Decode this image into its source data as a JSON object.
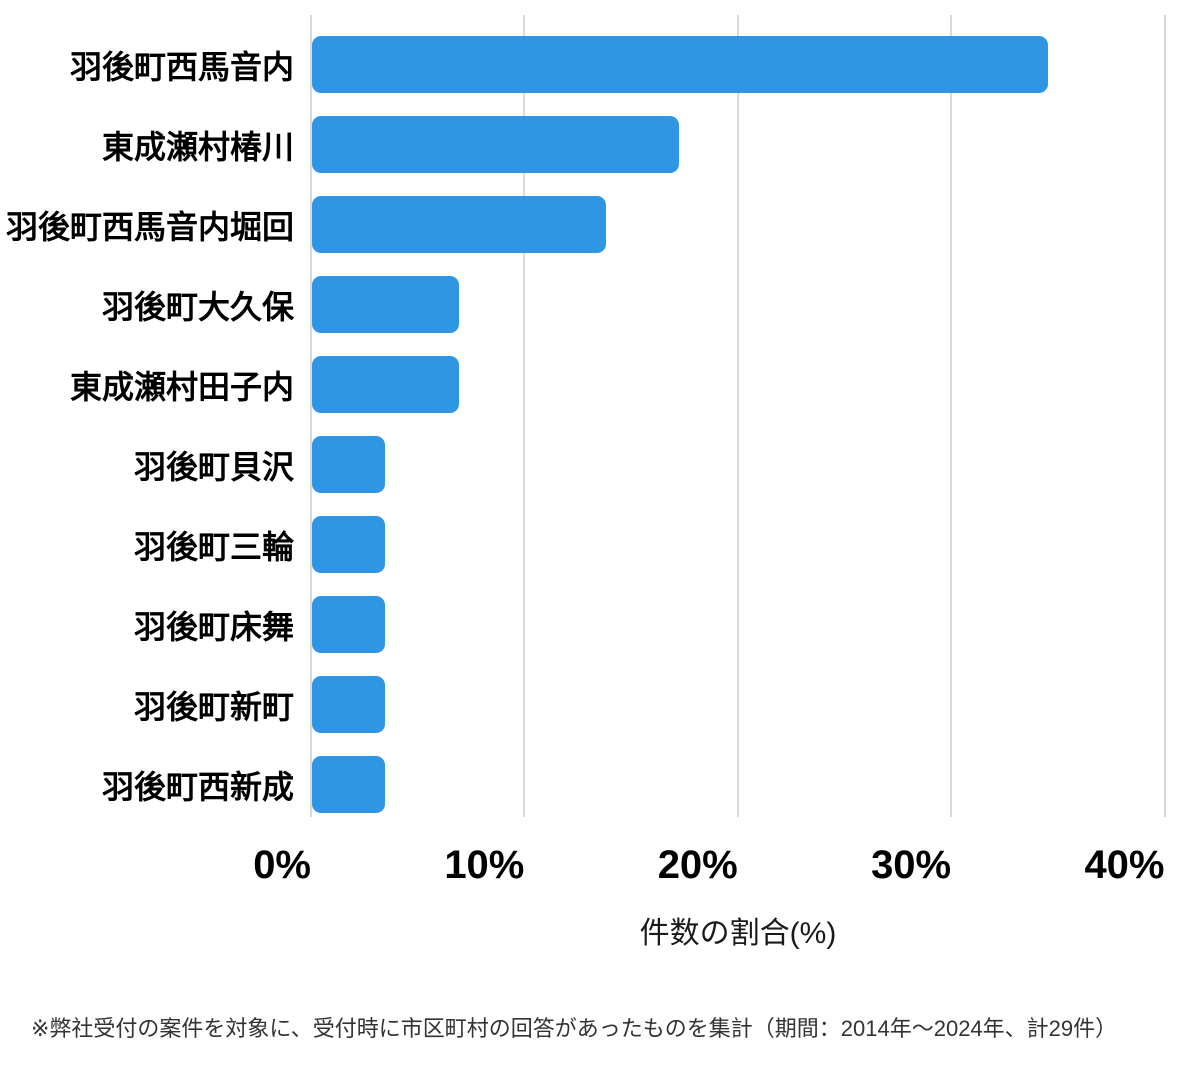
{
  "chart_data": {
    "type": "bar",
    "orientation": "horizontal",
    "title": "",
    "xlabel": "件数の割合(%)",
    "ylabel": "",
    "categories": [
      "羽後町西馬音内",
      "東成瀬村椿川",
      "羽後町西馬音内堀回",
      "羽後町大久保",
      "東成瀬村田子内",
      "羽後町貝沢",
      "羽後町三輪",
      "羽後町床舞",
      "羽後町新町",
      "羽後町西新成"
    ],
    "values": [
      34.5,
      17.2,
      13.8,
      6.9,
      6.9,
      3.4,
      3.4,
      3.4,
      3.4,
      3.4
    ],
    "xlim": [
      0,
      40
    ],
    "xticks": [
      0,
      10,
      20,
      30,
      40
    ],
    "xtick_labels": [
      "0%",
      "10%",
      "20%",
      "30%",
      "40%"
    ],
    "grid": true,
    "legend": "none",
    "bar_color": "#2e96e3",
    "gridline_color": "#d9d9d9"
  },
  "footer": {
    "note": "※弊社受付の案件を対象に、受付時に市区町村の回答があったものを集計（期間：2014年～2024年、計29件）"
  }
}
